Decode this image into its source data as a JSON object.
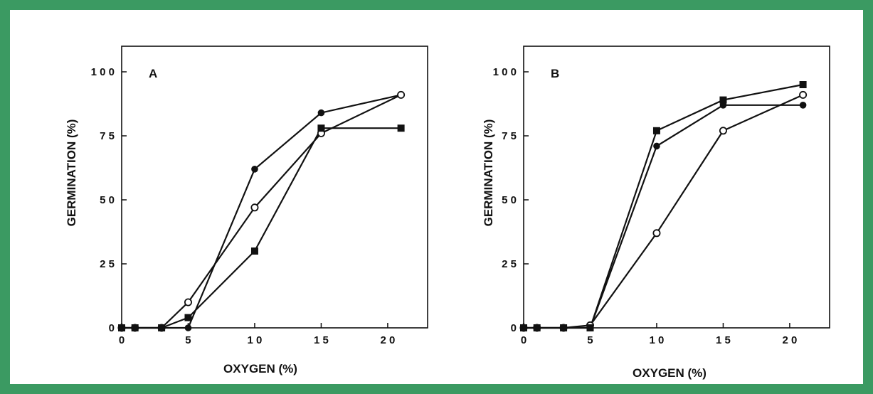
{
  "frame_color": "#3b9a62",
  "chart_data": [
    {
      "type": "line",
      "panel_label": "A",
      "xlabel": "OXYGEN (%)",
      "ylabel": "GERMINATION (%)",
      "xlim": [
        0,
        23
      ],
      "ylim": [
        0,
        110
      ],
      "xticks": [
        0,
        5,
        10,
        15,
        20
      ],
      "xtick_labels": [
        "0",
        "5",
        "1 0",
        "1 5",
        "2 0"
      ],
      "yticks": [
        0,
        25,
        50,
        75,
        100
      ],
      "ytick_labels": [
        "0",
        "2 5",
        "5 0",
        "7 5",
        "1 0 0"
      ],
      "grid": false,
      "series": [
        {
          "marker": "filled-circle",
          "x": [
            0,
            1,
            3,
            5,
            10,
            15,
            21
          ],
          "y": [
            0,
            0,
            0,
            0,
            62,
            84,
            91
          ]
        },
        {
          "marker": "open-circle",
          "x": [
            0,
            1,
            3,
            5,
            10,
            15,
            21
          ],
          "y": [
            0,
            0,
            0,
            10,
            47,
            76,
            91
          ]
        },
        {
          "marker": "filled-square",
          "x": [
            0,
            1,
            3,
            5,
            10,
            15,
            21
          ],
          "y": [
            0,
            0,
            0,
            4,
            30,
            78,
            78
          ]
        }
      ]
    },
    {
      "type": "line",
      "panel_label": "B",
      "xlabel": "OXYGEN (%)",
      "ylabel": "GERMINATION (%)",
      "xlim": [
        0,
        23
      ],
      "ylim": [
        0,
        110
      ],
      "xticks": [
        0,
        5,
        10,
        15,
        20
      ],
      "xtick_labels": [
        "0",
        "5",
        "1 0",
        "1 5",
        "2 0"
      ],
      "yticks": [
        0,
        25,
        50,
        75,
        100
      ],
      "ytick_labels": [
        "0",
        "2 5",
        "5 0",
        "7 5",
        "1 0 0"
      ],
      "grid": false,
      "series": [
        {
          "marker": "filled-circle",
          "x": [
            0,
            1,
            3,
            5,
            10,
            15,
            21
          ],
          "y": [
            0,
            0,
            0,
            0,
            71,
            87,
            87
          ]
        },
        {
          "marker": "open-circle",
          "x": [
            0,
            1,
            3,
            5,
            10,
            15,
            21
          ],
          "y": [
            0,
            0,
            0,
            1,
            37,
            77,
            91
          ]
        },
        {
          "marker": "filled-square",
          "x": [
            0,
            1,
            3,
            5,
            10,
            15,
            21
          ],
          "y": [
            0,
            0,
            0,
            0,
            77,
            89,
            95
          ]
        }
      ]
    }
  ]
}
